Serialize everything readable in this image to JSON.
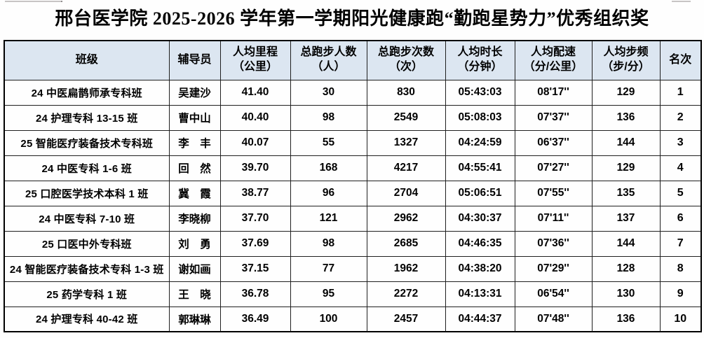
{
  "title": "邢台医学院 2025-2026 学年第一学期阳光健康跑“勤跑星势力”优秀组织奖",
  "colors": {
    "header_bg": "#dce6f1",
    "border": "#000000",
    "text": "#000000"
  },
  "table": {
    "headers": [
      "班级",
      "辅导员",
      "人均里程\n（公里）",
      "总跑步人数\n（人）",
      "总跑步次数\n（次）",
      "人均时长\n（分钟）",
      "人均配速\n（分/公里）",
      "人均步频\n（步/分）",
      "名次"
    ],
    "column_keys": [
      "class",
      "counselor",
      "avg_distance_km",
      "total_runners",
      "total_runs",
      "avg_duration",
      "avg_pace",
      "avg_cadence",
      "rank"
    ],
    "rows": [
      {
        "class": "24 中医扁鹊师承专科班",
        "counselor": "吴建沙",
        "avg_distance_km": "41.40",
        "total_runners": "30",
        "total_runs": "830",
        "avg_duration": "05:43:03",
        "avg_pace": "08'17''",
        "avg_cadence": "129",
        "rank": "1"
      },
      {
        "class": "24 护理专科 13-15 班",
        "counselor": "曹中山",
        "avg_distance_km": "40.40",
        "total_runners": "98",
        "total_runs": "2549",
        "avg_duration": "05:08:03",
        "avg_pace": "07'37''",
        "avg_cadence": "136",
        "rank": "2"
      },
      {
        "class": "25 智能医疗装备技术专科班",
        "counselor": "李　丰",
        "avg_distance_km": "40.07",
        "total_runners": "55",
        "total_runs": "1327",
        "avg_duration": "04:24:59",
        "avg_pace": "06'37''",
        "avg_cadence": "144",
        "rank": "3"
      },
      {
        "class": "24 中医专科 1-6 班",
        "counselor": "回　然",
        "avg_distance_km": "39.70",
        "total_runners": "168",
        "total_runs": "4217",
        "avg_duration": "04:55:41",
        "avg_pace": "07'27''",
        "avg_cadence": "129",
        "rank": "4"
      },
      {
        "class": "25 口腔医学技术本科 1 班",
        "counselor": "冀　霞",
        "avg_distance_km": "38.77",
        "total_runners": "96",
        "total_runs": "2704",
        "avg_duration": "05:06:51",
        "avg_pace": "07'55''",
        "avg_cadence": "135",
        "rank": "5"
      },
      {
        "class": "24 中医专科 7-10 班",
        "counselor": "李晓柳",
        "avg_distance_km": "37.70",
        "total_runners": "121",
        "total_runs": "2962",
        "avg_duration": "04:30:37",
        "avg_pace": "07'11''",
        "avg_cadence": "137",
        "rank": "6"
      },
      {
        "class": "25 口医中外专科班",
        "counselor": "刘　勇",
        "avg_distance_km": "37.69",
        "total_runners": "98",
        "total_runs": "2685",
        "avg_duration": "04:46:35",
        "avg_pace": "07'36''",
        "avg_cadence": "144",
        "rank": "7"
      },
      {
        "class": "24 智能医疗装备技术专科 1-3 班",
        "counselor": "谢如画",
        "avg_distance_km": "37.15",
        "total_runners": "77",
        "total_runs": "1962",
        "avg_duration": "04:38:20",
        "avg_pace": "07'29''",
        "avg_cadence": "128",
        "rank": "8"
      },
      {
        "class": "25 药学专科 1 班",
        "counselor": "王　晓",
        "avg_distance_km": "36.78",
        "total_runners": "95",
        "total_runs": "2272",
        "avg_duration": "04:13:31",
        "avg_pace": "06'54''",
        "avg_cadence": "130",
        "rank": "9"
      },
      {
        "class": "24 护理专科 40-42 班",
        "counselor": "郭琳琳",
        "avg_distance_km": "36.49",
        "total_runners": "100",
        "total_runs": "2457",
        "avg_duration": "04:44:37",
        "avg_pace": "07'48''",
        "avg_cadence": "136",
        "rank": "10"
      }
    ]
  }
}
